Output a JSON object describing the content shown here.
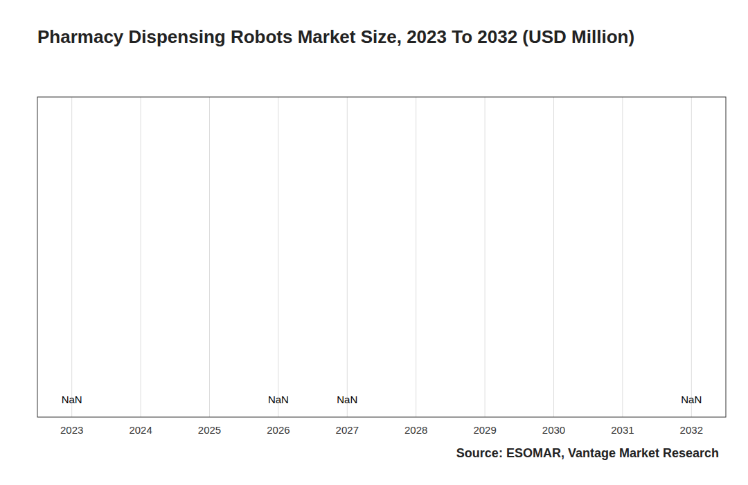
{
  "chart_data": {
    "type": "bar",
    "title": "Pharmacy Dispensing Robots Market Size, 2023 To 2032 (USD Million)",
    "categories": [
      "2023",
      "2024",
      "2025",
      "2026",
      "2027",
      "2028",
      "2029",
      "2030",
      "2031",
      "2032"
    ],
    "values": [
      null,
      null,
      null,
      null,
      null,
      null,
      null,
      null,
      null,
      null
    ],
    "value_labels": [
      "NaN",
      null,
      null,
      "NaN",
      "NaN",
      null,
      null,
      null,
      null,
      "NaN"
    ],
    "data_labels": true,
    "ylim": [
      0,
      1
    ],
    "grid": true,
    "tick_labels": "x",
    "annotations": [
      "Source: ESOMAR, Vantage Market Research"
    ]
  }
}
